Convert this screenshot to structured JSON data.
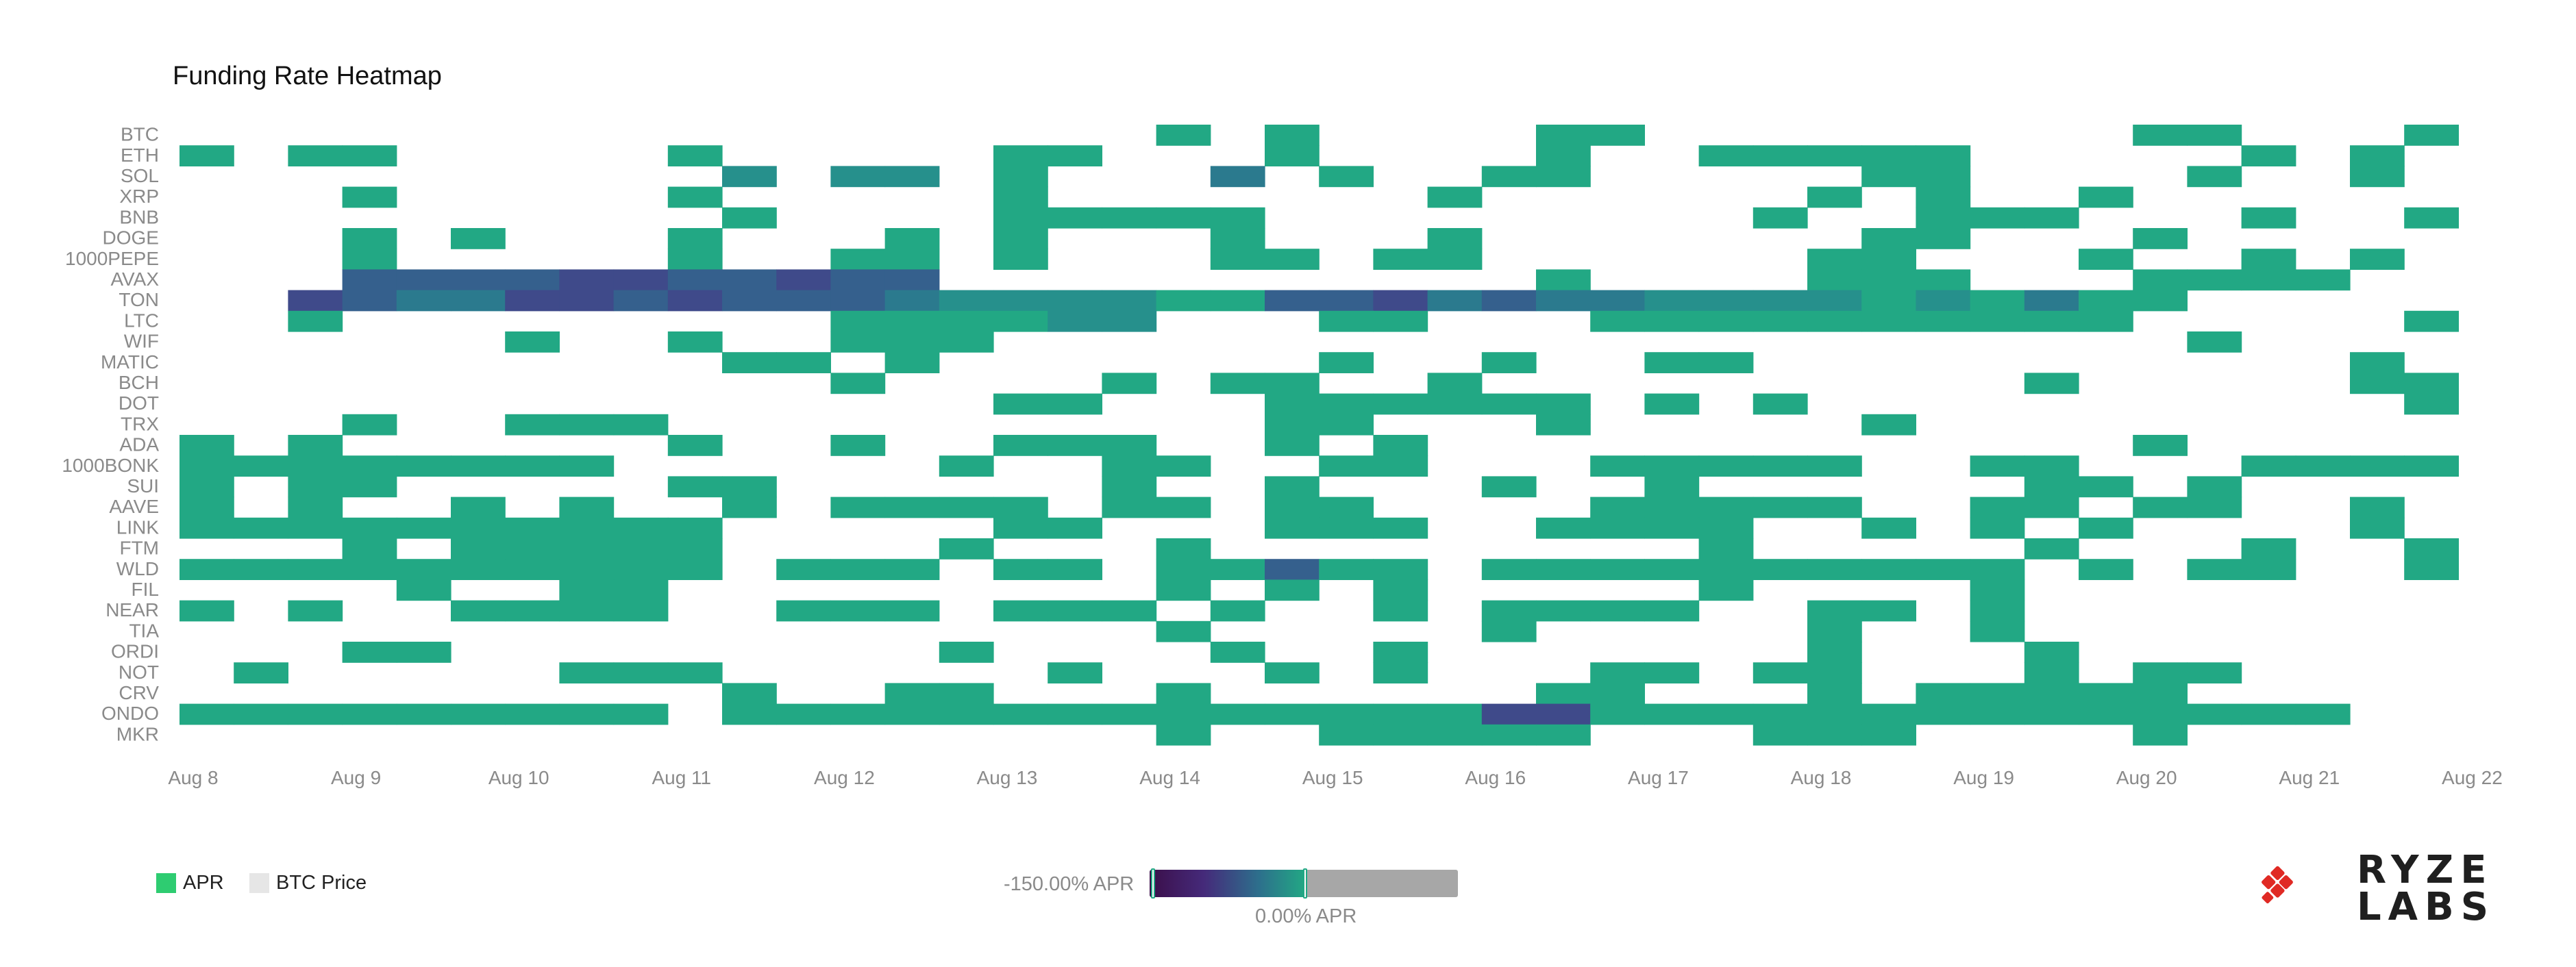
{
  "chart_data": {
    "type": "heatmap",
    "title": "Funding Rate Heatmap",
    "rows": [
      "BTC",
      "ETH",
      "SOL",
      "XRP",
      "BNB",
      "DOGE",
      "1000PEPE",
      "AVAX",
      "TON",
      "LTC",
      "WIF",
      "MATIC",
      "BCH",
      "DOT",
      "TRX",
      "ADA",
      "1000BONK",
      "SUI",
      "AAVE",
      "LINK",
      "FTM",
      "WLD",
      "FIL",
      "NEAR",
      "TIA",
      "ORDI",
      "NOT",
      "CRV",
      "ONDO",
      "MKR"
    ],
    "x_tick_labels": [
      "Aug 8",
      "Aug 9",
      "Aug 10",
      "Aug 11",
      "Aug 12",
      "Aug 13",
      "Aug 14",
      "Aug 15",
      "Aug 16",
      "Aug 17",
      "Aug 18",
      "Aug 19",
      "Aug 20",
      "Aug 21",
      "Aug 22"
    ],
    "columns_per_day": 3,
    "num_columns": 42,
    "values_note": "APR values; empty string = no data (blank cell)",
    "color_scale": {
      "min_label": "-150.00% APR",
      "mid_label": "0.00% APR",
      "min": -150,
      "mid": 0,
      "colors": [
        "#3b0f4a",
        "#452a7a",
        "#2d6f8c",
        "#22a884"
      ],
      "positive_color": "#22a884"
    },
    "legend": [
      {
        "label": "APR",
        "color": "#2ecc71"
      },
      {
        "label": "BTC Price",
        "color": "#e6e6e6"
      }
    ],
    "grid": false,
    "matrix_encoded": [
      "..................5.5....55.........55...5",
      "5.55.....5.....55...5....5..55555.....5.5.",
      "..........4.44.5...3.5..55.....55....5..5.",
      "...5.....5.....5.......5......5.5..5......",
      "..........5....55555.........5..555...5..5",
      "...5.5...5...5.5...5...5.......55...5.....",
      "...5.....5..55.5...55.55......55...5..5.5.",
      "...22221122122...........5....555...5555..",
      "..12331121222344445522132334444545355.....",
      "..5.........555544...55...5555555555.....5",
      "......5..5..555......................5....",
      "..........55.5.......5..5..55...........5.",
      "............5....5.55..5..........5.....55",
      "...............55...555555.5.5...........5",
      "...5..555...........55...5.....5..........",
      "5.5......5..5..555..5.5.............5.....",
      "55555555......5..55..55...55555..55...5555",
      "5.55.....55......5..5...5..5......55.5....",
      "5.5..5.5..5.5555.55.55....55555..55.55..5.",
      "5555555555.....55...555..5555..5.5.5....5.",
      "...5.55555....5...5.........5.....5...5..5",
      "5555555555.555.55.55255.5555555555.5.55..5",
      "....5..55.........5.5.5.....5....5........",
      "5.5..5555..555.555.5..5.5555..55.5........",
      "..................5.....5.....5..5........",
      "...55.........5....5..5.......5...5.......",
      ".5.....555......5...5.5...55.55...5.55....",
      "..........5..55...5......55...5.55555.....",
      "555555555.555555555555551155555555555555..",
      "..................5..55555...555....5....."
    ]
  },
  "logo": {
    "line1": "RYZE",
    "line2": "LABS",
    "color": "#e02a24"
  }
}
